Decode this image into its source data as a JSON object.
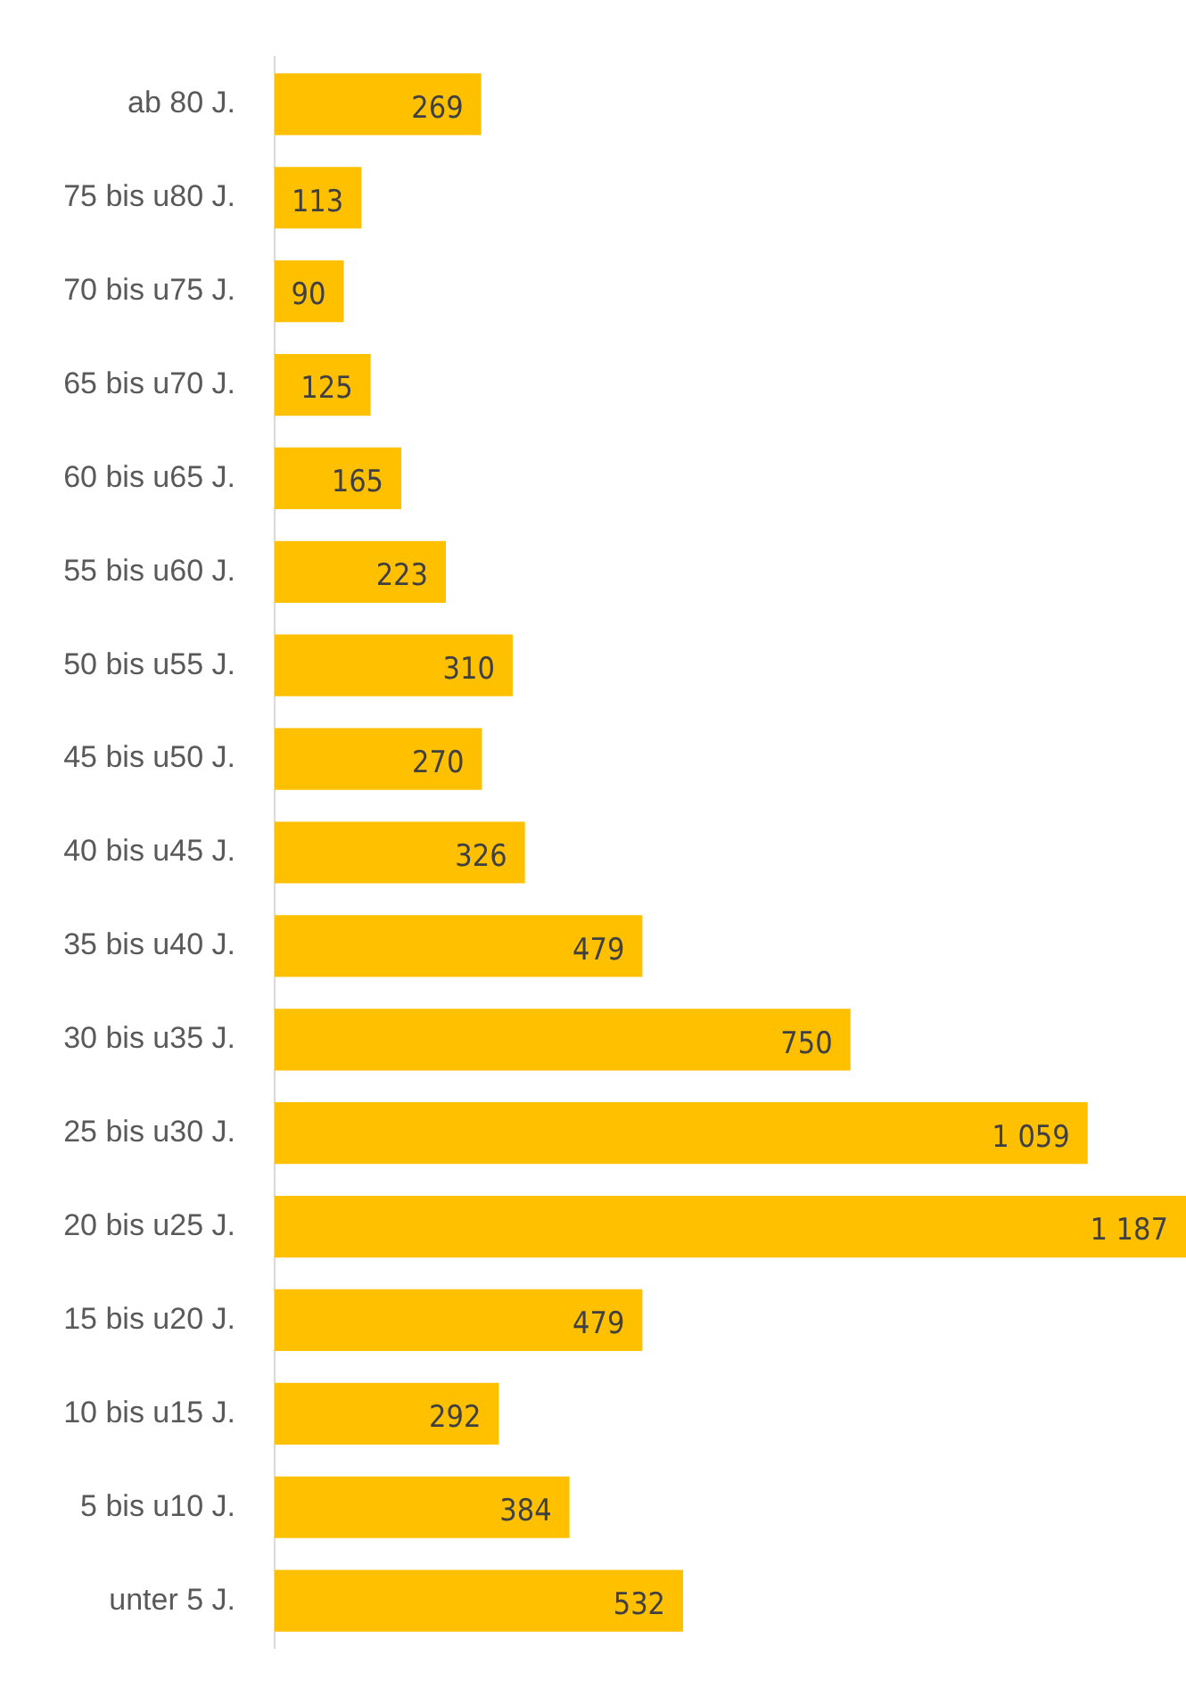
{
  "chart_data": {
    "type": "bar",
    "orientation": "horizontal",
    "categories": [
      "ab 80 J.",
      "75 bis u80 J.",
      "70 bis u75 J.",
      "65 bis u70 J.",
      "60 bis u65 J.",
      "55 bis u60 J.",
      "50 bis u55 J.",
      "45 bis u50 J.",
      "40 bis u45 J.",
      "35 bis u40 J.",
      "30 bis u35 J.",
      "25 bis u30 J.",
      "20 bis u25 J.",
      "15 bis u20 J.",
      "10 bis u15 J.",
      "5 bis u10 J.",
      "unter 5 J."
    ],
    "values": [
      269,
      113,
      90,
      125,
      165,
      223,
      310,
      270,
      326,
      479,
      750,
      1059,
      1187,
      479,
      292,
      384,
      532
    ],
    "value_labels": [
      "269",
      "113",
      "90",
      "125",
      "165",
      "223",
      "310",
      "270",
      "326",
      "479",
      "750",
      "1 059",
      "1 187",
      "479",
      "292",
      "384",
      "532"
    ],
    "color": "#ffc000",
    "legend": false,
    "tick_labels": "y"
  }
}
